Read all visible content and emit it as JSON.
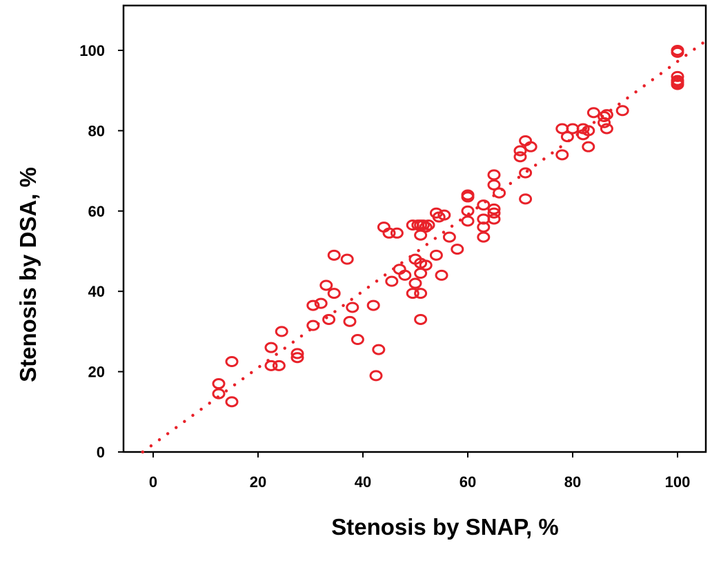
{
  "chart_data": {
    "type": "scatter",
    "xlabel": "Stenosis by SNAP, %",
    "ylabel": "Stenosis by DSA, %",
    "xlim": [
      -6,
      105
    ],
    "ylim": [
      0,
      110
    ],
    "xticks": [
      0,
      20,
      40,
      60,
      80,
      100
    ],
    "yticks": [
      0,
      20,
      40,
      60,
      80,
      100
    ],
    "grid": false,
    "colors": {
      "points": "#e8222a",
      "axes": "#000000"
    },
    "fit_line": {
      "style": "dotted",
      "from": [
        -2,
        0
      ],
      "to": [
        105,
        102
      ]
    },
    "points": [
      [
        12.5,
        17
      ],
      [
        12.5,
        14.5
      ],
      [
        15,
        22.5
      ],
      [
        15,
        12.5
      ],
      [
        22.5,
        26
      ],
      [
        22.5,
        21.5
      ],
      [
        24,
        21.5
      ],
      [
        24.5,
        30
      ],
      [
        27.5,
        24.5
      ],
      [
        27.5,
        23.5
      ],
      [
        30.5,
        36.5
      ],
      [
        30.5,
        31.5
      ],
      [
        32,
        37
      ],
      [
        33,
        41.5
      ],
      [
        33.5,
        33
      ],
      [
        34.5,
        49
      ],
      [
        34.5,
        39.5
      ],
      [
        37,
        48
      ],
      [
        37.5,
        32.5
      ],
      [
        38,
        36
      ],
      [
        39,
        28
      ],
      [
        42,
        36.5
      ],
      [
        42.5,
        19
      ],
      [
        43,
        25.5
      ],
      [
        44,
        56
      ],
      [
        45,
        54.5
      ],
      [
        45.5,
        42.5
      ],
      [
        46.5,
        54.5
      ],
      [
        47,
        45.5
      ],
      [
        48,
        44
      ],
      [
        49.5,
        56.5
      ],
      [
        49.5,
        39.5
      ],
      [
        50,
        48
      ],
      [
        50,
        42
      ],
      [
        50.5,
        56.5
      ],
      [
        51,
        56.5
      ],
      [
        51,
        54
      ],
      [
        51,
        47
      ],
      [
        51,
        44.5
      ],
      [
        51,
        39.5
      ],
      [
        51,
        33
      ],
      [
        51.5,
        56.5
      ],
      [
        52,
        56
      ],
      [
        52,
        46.5
      ],
      [
        52.5,
        56.5
      ],
      [
        54,
        59.5
      ],
      [
        54,
        49
      ],
      [
        54.5,
        58.5
      ],
      [
        55,
        44
      ],
      [
        55.5,
        59
      ],
      [
        56.5,
        53.5
      ],
      [
        58,
        50.5
      ],
      [
        60,
        64
      ],
      [
        60,
        63.5
      ],
      [
        60,
        60
      ],
      [
        60,
        57.5
      ],
      [
        63,
        61.5
      ],
      [
        63,
        58
      ],
      [
        63,
        56
      ],
      [
        63,
        53.5
      ],
      [
        65,
        69
      ],
      [
        65,
        66.5
      ],
      [
        65,
        60.5
      ],
      [
        65,
        59.5
      ],
      [
        65,
        58
      ],
      [
        66,
        64.5
      ],
      [
        70,
        75
      ],
      [
        70,
        73.5
      ],
      [
        71,
        77.5
      ],
      [
        71,
        69.5
      ],
      [
        71,
        63
      ],
      [
        72,
        76
      ],
      [
        78,
        80.5
      ],
      [
        78,
        74
      ],
      [
        79,
        78.5
      ],
      [
        80,
        80.5
      ],
      [
        82,
        80.5
      ],
      [
        82,
        79
      ],
      [
        83,
        80
      ],
      [
        83,
        76
      ],
      [
        84,
        84.5
      ],
      [
        86,
        83.5
      ],
      [
        86,
        82
      ],
      [
        86.5,
        84
      ],
      [
        86.5,
        80.5
      ],
      [
        89.5,
        85
      ],
      [
        100,
        100
      ],
      [
        100,
        99.5
      ],
      [
        100,
        93.5
      ],
      [
        100,
        92.5
      ],
      [
        100,
        92
      ],
      [
        100,
        91.5
      ]
    ]
  }
}
